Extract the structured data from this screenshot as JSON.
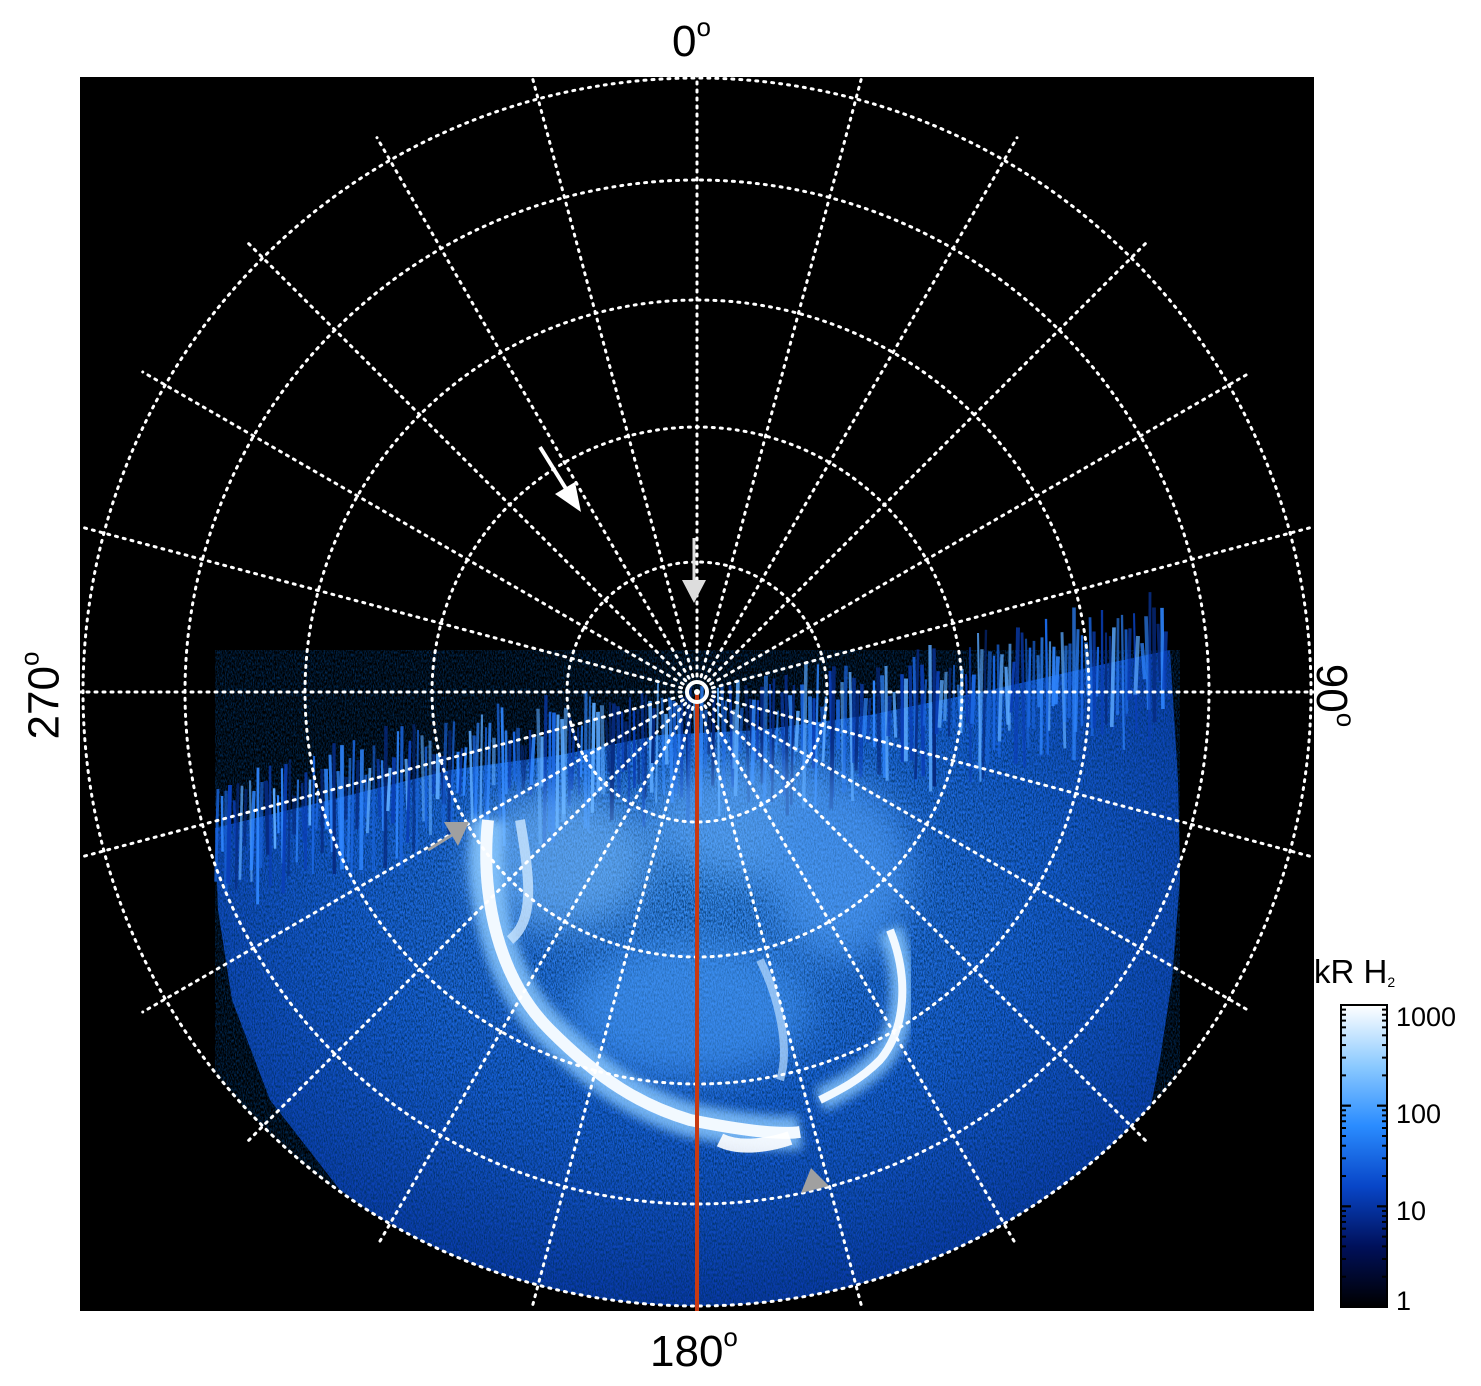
{
  "image": {
    "kind": "polar projection map of auroral H2 emission",
    "background": "#000000",
    "grid_color": "#ffffff",
    "meridian_line_color": "#c83a12",
    "arrow_colors": {
      "white": "#ffffff",
      "light_grey": "#dddddd",
      "grey": "#a0a0a0"
    }
  },
  "axis_labels": {
    "top": "0",
    "right": "90",
    "bottom": "180",
    "left": "270",
    "degree_symbol": "o"
  },
  "colorbar": {
    "title_main": "kR H",
    "title_sub": "2",
    "ticks": [
      "1000",
      "100",
      "10",
      "1"
    ],
    "tick_values": [
      1000,
      100,
      10,
      1
    ],
    "scale": "log",
    "colors": [
      "#000000",
      "#00105a",
      "#0846c8",
      "#2a8cff",
      "#8ccaff",
      "#ffffff"
    ]
  }
}
